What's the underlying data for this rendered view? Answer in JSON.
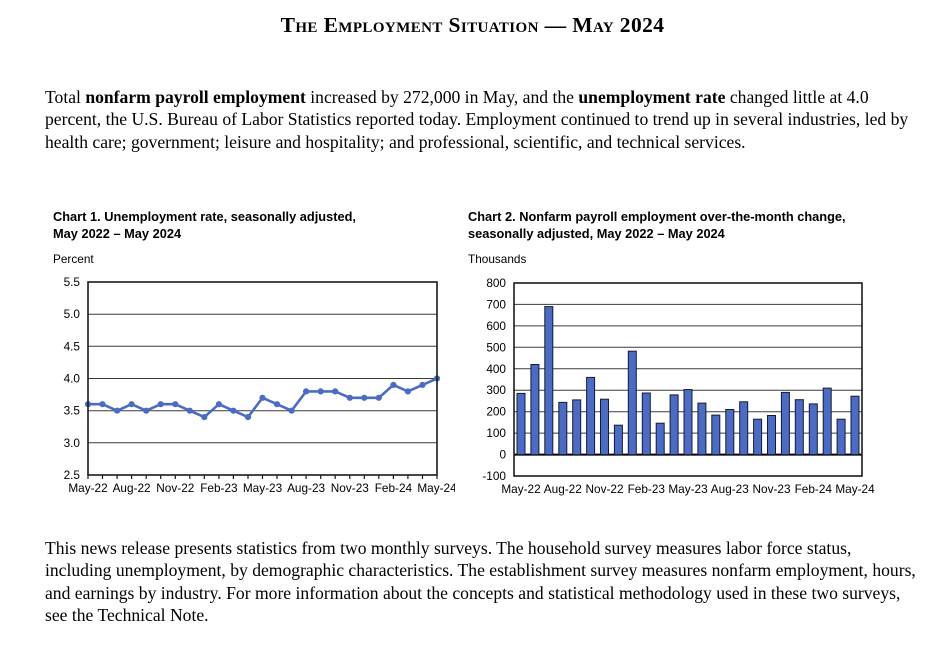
{
  "header": {
    "title": "The Employment Situation — May 2024"
  },
  "intro": {
    "pre": "Total ",
    "bold1": "nonfarm payroll employment",
    "mid": " increased by 272,000 in May, and the ",
    "bold2": "unemployment rate",
    "rest": " changed little at 4.0 percent, the U.S. Bureau of Labor Statistics reported today. Employment continued to trend up in several industries, led by health care; government; leisure and hospitality; and professional, scientific, and technical services."
  },
  "footer": {
    "text": "This news release presents statistics from two monthly surveys. The household survey measures labor force status, including unemployment, by demographic characteristics. The establishment survey measures nonfarm employment, hours, and earnings by industry. For more information about the concepts and statistical methodology used in these two surveys, see the Technical Note."
  },
  "chart_data": [
    {
      "type": "line",
      "title_line1": "Chart 1. Unemployment rate, seasonally adjusted,",
      "title_line2": "May 2022 – May 2024",
      "ylabel": "Percent",
      "categories": [
        "May-22",
        "Jun-22",
        "Jul-22",
        "Aug-22",
        "Sep-22",
        "Oct-22",
        "Nov-22",
        "Dec-22",
        "Jan-23",
        "Feb-23",
        "Mar-23",
        "Apr-23",
        "May-23",
        "Jun-23",
        "Jul-23",
        "Aug-23",
        "Sep-23",
        "Oct-23",
        "Nov-23",
        "Dec-23",
        "Jan-24",
        "Feb-24",
        "Mar-24",
        "Apr-24",
        "May-24"
      ],
      "values": [
        3.6,
        3.6,
        3.5,
        3.6,
        3.5,
        3.6,
        3.6,
        3.5,
        3.4,
        3.6,
        3.5,
        3.4,
        3.7,
        3.6,
        3.5,
        3.8,
        3.8,
        3.8,
        3.7,
        3.7,
        3.7,
        3.9,
        3.8,
        3.9,
        4.0
      ],
      "xtick_labels_shown": [
        "May-22",
        "Aug-22",
        "Nov-22",
        "Feb-23",
        "May-23",
        "Aug-23",
        "Nov-23",
        "Feb-24",
        "May-24"
      ],
      "ylim": [
        2.5,
        5.5
      ],
      "ytick_step": 0.5,
      "ytick_decimals": 1,
      "label_every": 3,
      "grid": true,
      "legend": false,
      "line_color": "#4a6cc6"
    },
    {
      "type": "bar",
      "title_line1": "Chart 2. Nonfarm payroll employment over-the-month change,",
      "title_line2": "seasonally adjusted, May 2022 – May 2024",
      "ylabel": "Thousands",
      "categories": [
        "May-22",
        "Jun-22",
        "Jul-22",
        "Aug-22",
        "Sep-22",
        "Oct-22",
        "Nov-22",
        "Dec-22",
        "Jan-23",
        "Feb-23",
        "Mar-23",
        "Apr-23",
        "May-23",
        "Jun-23",
        "Jul-23",
        "Aug-23",
        "Sep-23",
        "Oct-23",
        "Nov-23",
        "Dec-23",
        "Jan-24",
        "Feb-24",
        "Mar-24",
        "Apr-24",
        "May-24"
      ],
      "values": [
        285,
        420,
        690,
        243,
        255,
        360,
        258,
        137,
        482,
        287,
        146,
        278,
        303,
        240,
        184,
        210,
        246,
        165,
        182,
        290,
        256,
        236,
        310,
        165,
        272
      ],
      "xtick_labels_shown": [
        "May-22",
        "Aug-22",
        "Nov-22",
        "Feb-23",
        "May-23",
        "Aug-23",
        "Nov-23",
        "Feb-24",
        "May-24"
      ],
      "ylim": [
        -100,
        800
      ],
      "ytick_step": 100,
      "ytick_decimals": 0,
      "label_every": 3,
      "grid": true,
      "legend": false,
      "bar_color": "#4a6cc6",
      "bar_border": "#161c30"
    }
  ],
  "colors": {
    "accent_blue": "#4a6cc6",
    "grid": "#3c3c3c",
    "plot_border": "#1a1a1a",
    "text": "#000000",
    "background": "#ffffff"
  }
}
